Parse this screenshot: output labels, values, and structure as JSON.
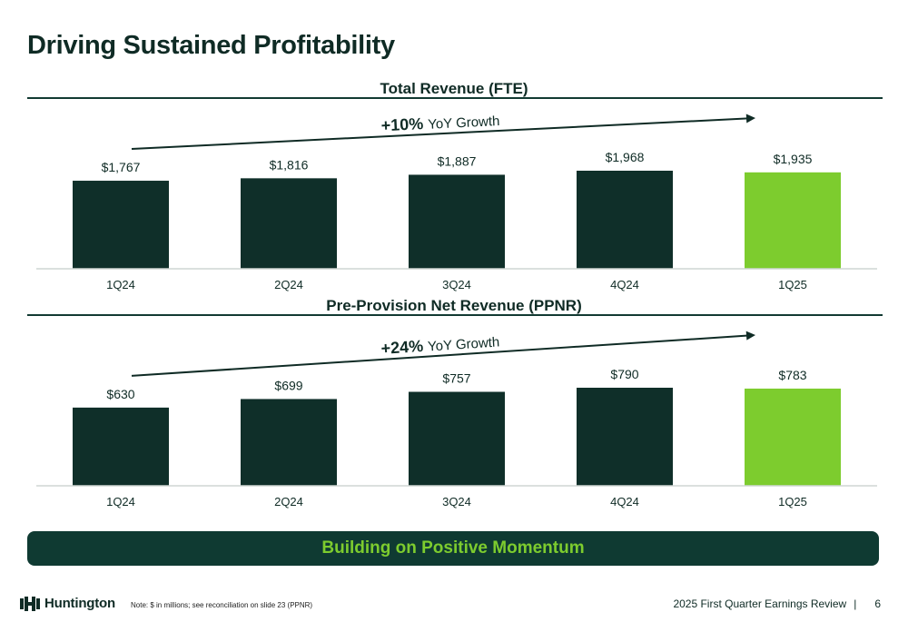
{
  "slide": {
    "title": "Driving Sustained Profitability",
    "banner": "Building on Positive Momentum",
    "footer": {
      "logo": "Huntington",
      "note": "Note: $ in millions; see reconciliation on slide 23 (PPNR)",
      "review": "2025 First Quarter Earnings Review",
      "separator": "|",
      "page": "6"
    }
  },
  "colors": {
    "bar_dark": "#0f2f29",
    "bar_highlight": "#7dcc2e",
    "text_dark": "#0f2b25"
  },
  "chart_data": [
    {
      "type": "bar",
      "title": "Total Revenue (FTE)",
      "categories": [
        "1Q24",
        "2Q24",
        "3Q24",
        "4Q24",
        "1Q25"
      ],
      "values": [
        1767,
        1816,
        1887,
        1968,
        1935
      ],
      "data_labels": [
        "$1,767",
        "$1,816",
        "$1,887",
        "$1,968",
        "$1,935"
      ],
      "highlight_index": 4,
      "annotation": {
        "value": "+10%",
        "text": "YoY Growth"
      }
    },
    {
      "type": "bar",
      "title": "Pre-Provision Net Revenue (PPNR)",
      "categories": [
        "1Q24",
        "2Q24",
        "3Q24",
        "4Q24",
        "1Q25"
      ],
      "values": [
        630,
        699,
        757,
        790,
        783
      ],
      "data_labels": [
        "$630",
        "$699",
        "$757",
        "$790",
        "$783"
      ],
      "highlight_index": 4,
      "annotation": {
        "value": "+24%",
        "text": "YoY Growth"
      }
    }
  ]
}
